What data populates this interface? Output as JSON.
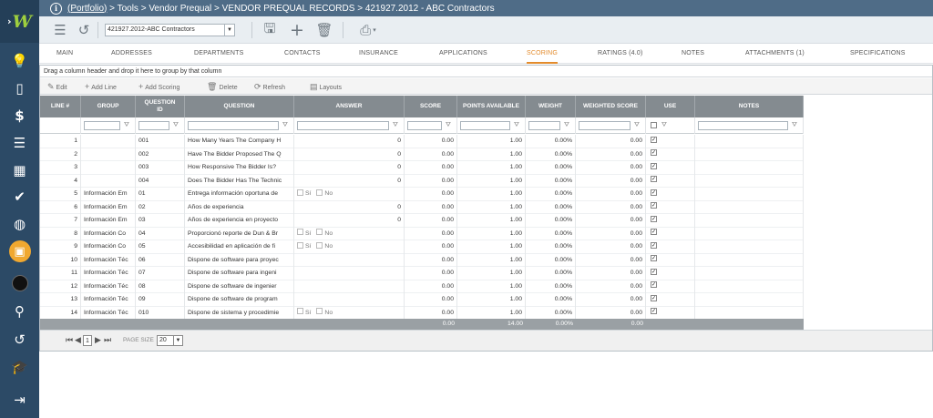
{
  "sidebar": {
    "logo_text": "W",
    "items": [
      "lightbulb-icon",
      "document-icon",
      "dollar-icon",
      "gantt-icon",
      "building-icon",
      "check-icon",
      "globe-icon",
      "briefcase-icon",
      "avatar",
      "search-icon",
      "history-icon",
      "graduation-icon",
      "logout-icon"
    ]
  },
  "topbar": {
    "breadcrumb_link": "(Portfolio)",
    "breadcrumb_rest": " > Tools > Vendor Prequal > VENDOR PREQUAL RECORDS > 421927.2012 - ABC Contractors"
  },
  "toolbar": {
    "record_selected": "421927.2012-ABC Contractors"
  },
  "tabs": [
    {
      "label": "Main",
      "active": false
    },
    {
      "label": "Addresses",
      "active": false
    },
    {
      "label": "Departments",
      "active": false
    },
    {
      "label": "Contacts",
      "active": false
    },
    {
      "label": "Insurance",
      "active": false
    },
    {
      "label": "Applications",
      "active": false
    },
    {
      "label": "Scoring",
      "active": true
    },
    {
      "label": "Ratings (4.0)",
      "active": false
    },
    {
      "label": "Notes",
      "active": false
    },
    {
      "label": "Attachments (1)",
      "active": false
    },
    {
      "label": "Specifications",
      "active": false
    }
  ],
  "grid": {
    "group_hint": "Drag a column header and drop it here to group by that column",
    "tools": {
      "edit": "Edit",
      "add_line": "Add Line",
      "add_scoring": "Add Scoring",
      "delete": "Delete",
      "refresh": "Refresh",
      "layouts": "Layouts"
    },
    "columns": [
      "LINE #",
      "GROUP",
      "QUESTION ID",
      "QUESTION",
      "ANSWER",
      "SCORE",
      "POINTS AVAILABLE",
      "WEIGHT",
      "WEIGHTED SCORE",
      "USE",
      "NOTES"
    ],
    "yes_label": "Sí",
    "no_label": "No",
    "rows": [
      {
        "line": "1",
        "group": "",
        "qid": "001",
        "question": "How Many Years The Company H",
        "answer": "0",
        "answer_type": "num",
        "score": "0.00",
        "points": "1.00",
        "weight": "0.00%",
        "wscore": "0.00",
        "use": true
      },
      {
        "line": "2",
        "group": "",
        "qid": "002",
        "question": "Have The Bidder Proposed The Q",
        "answer": "0",
        "answer_type": "num",
        "score": "0.00",
        "points": "1.00",
        "weight": "0.00%",
        "wscore": "0.00",
        "use": true
      },
      {
        "line": "3",
        "group": "",
        "qid": "003",
        "question": "How Responsive The Bidder Is?",
        "answer": "0",
        "answer_type": "num",
        "score": "0.00",
        "points": "1.00",
        "weight": "0.00%",
        "wscore": "0.00",
        "use": true
      },
      {
        "line": "4",
        "group": "",
        "qid": "004",
        "question": "Does The Bidder Has The Technic",
        "answer": "0",
        "answer_type": "num",
        "score": "0.00",
        "points": "1.00",
        "weight": "0.00%",
        "wscore": "0.00",
        "use": true
      },
      {
        "line": "5",
        "group": "Información Em",
        "qid": "01",
        "question": "Entrega información oportuna de",
        "answer": "",
        "answer_type": "yesno",
        "score": "0.00",
        "points": "1.00",
        "weight": "0.00%",
        "wscore": "0.00",
        "use": true
      },
      {
        "line": "6",
        "group": "Información Em",
        "qid": "02",
        "question": "Años de experiencia",
        "answer": "0",
        "answer_type": "num",
        "score": "0.00",
        "points": "1.00",
        "weight": "0.00%",
        "wscore": "0.00",
        "use": true
      },
      {
        "line": "7",
        "group": "Información Em",
        "qid": "03",
        "question": "Años de experiencia en proyecto",
        "answer": "0",
        "answer_type": "num",
        "score": "0.00",
        "points": "1.00",
        "weight": "0.00%",
        "wscore": "0.00",
        "use": true
      },
      {
        "line": "8",
        "group": "Información Co",
        "qid": "04",
        "question": "Proporcionó reporte de Dun & Br",
        "answer": "",
        "answer_type": "yesno",
        "score": "0.00",
        "points": "1.00",
        "weight": "0.00%",
        "wscore": "0.00",
        "use": true
      },
      {
        "line": "9",
        "group": "Información Co",
        "qid": "05",
        "question": "Accesibilidad en aplicación de fi",
        "answer": "",
        "answer_type": "yesno",
        "score": "0.00",
        "points": "1.00",
        "weight": "0.00%",
        "wscore": "0.00",
        "use": true
      },
      {
        "line": "10",
        "group": "Información Téc",
        "qid": "06",
        "question": "Dispone de software para proyec",
        "answer": "",
        "answer_type": "blank",
        "score": "0.00",
        "points": "1.00",
        "weight": "0.00%",
        "wscore": "0.00",
        "use": true
      },
      {
        "line": "11",
        "group": "Información Téc",
        "qid": "07",
        "question": "Dispone de software para ingeni",
        "answer": "",
        "answer_type": "blank",
        "score": "0.00",
        "points": "1.00",
        "weight": "0.00%",
        "wscore": "0.00",
        "use": true
      },
      {
        "line": "12",
        "group": "Información Téc",
        "qid": "08",
        "question": "Dispone de software de ingenier",
        "answer": "",
        "answer_type": "blank",
        "score": "0.00",
        "points": "1.00",
        "weight": "0.00%",
        "wscore": "0.00",
        "use": true
      },
      {
        "line": "13",
        "group": "Información Téc",
        "qid": "09",
        "question": "Dispone de software de program",
        "answer": "",
        "answer_type": "blank",
        "score": "0.00",
        "points": "1.00",
        "weight": "0.00%",
        "wscore": "0.00",
        "use": true
      },
      {
        "line": "14",
        "group": "Información Téc",
        "qid": "010",
        "question": "Dispone de sistema y procedimie",
        "answer": "",
        "answer_type": "yesno",
        "score": "0.00",
        "points": "1.00",
        "weight": "0.00%",
        "wscore": "0.00",
        "use": true
      }
    ],
    "totals": {
      "score": "0.00",
      "points": "14.00",
      "weight": "0.00%",
      "wscore": "0.00"
    }
  },
  "pager": {
    "page": "1",
    "page_size_label": "PAGE SIZE",
    "page_size": "20"
  }
}
